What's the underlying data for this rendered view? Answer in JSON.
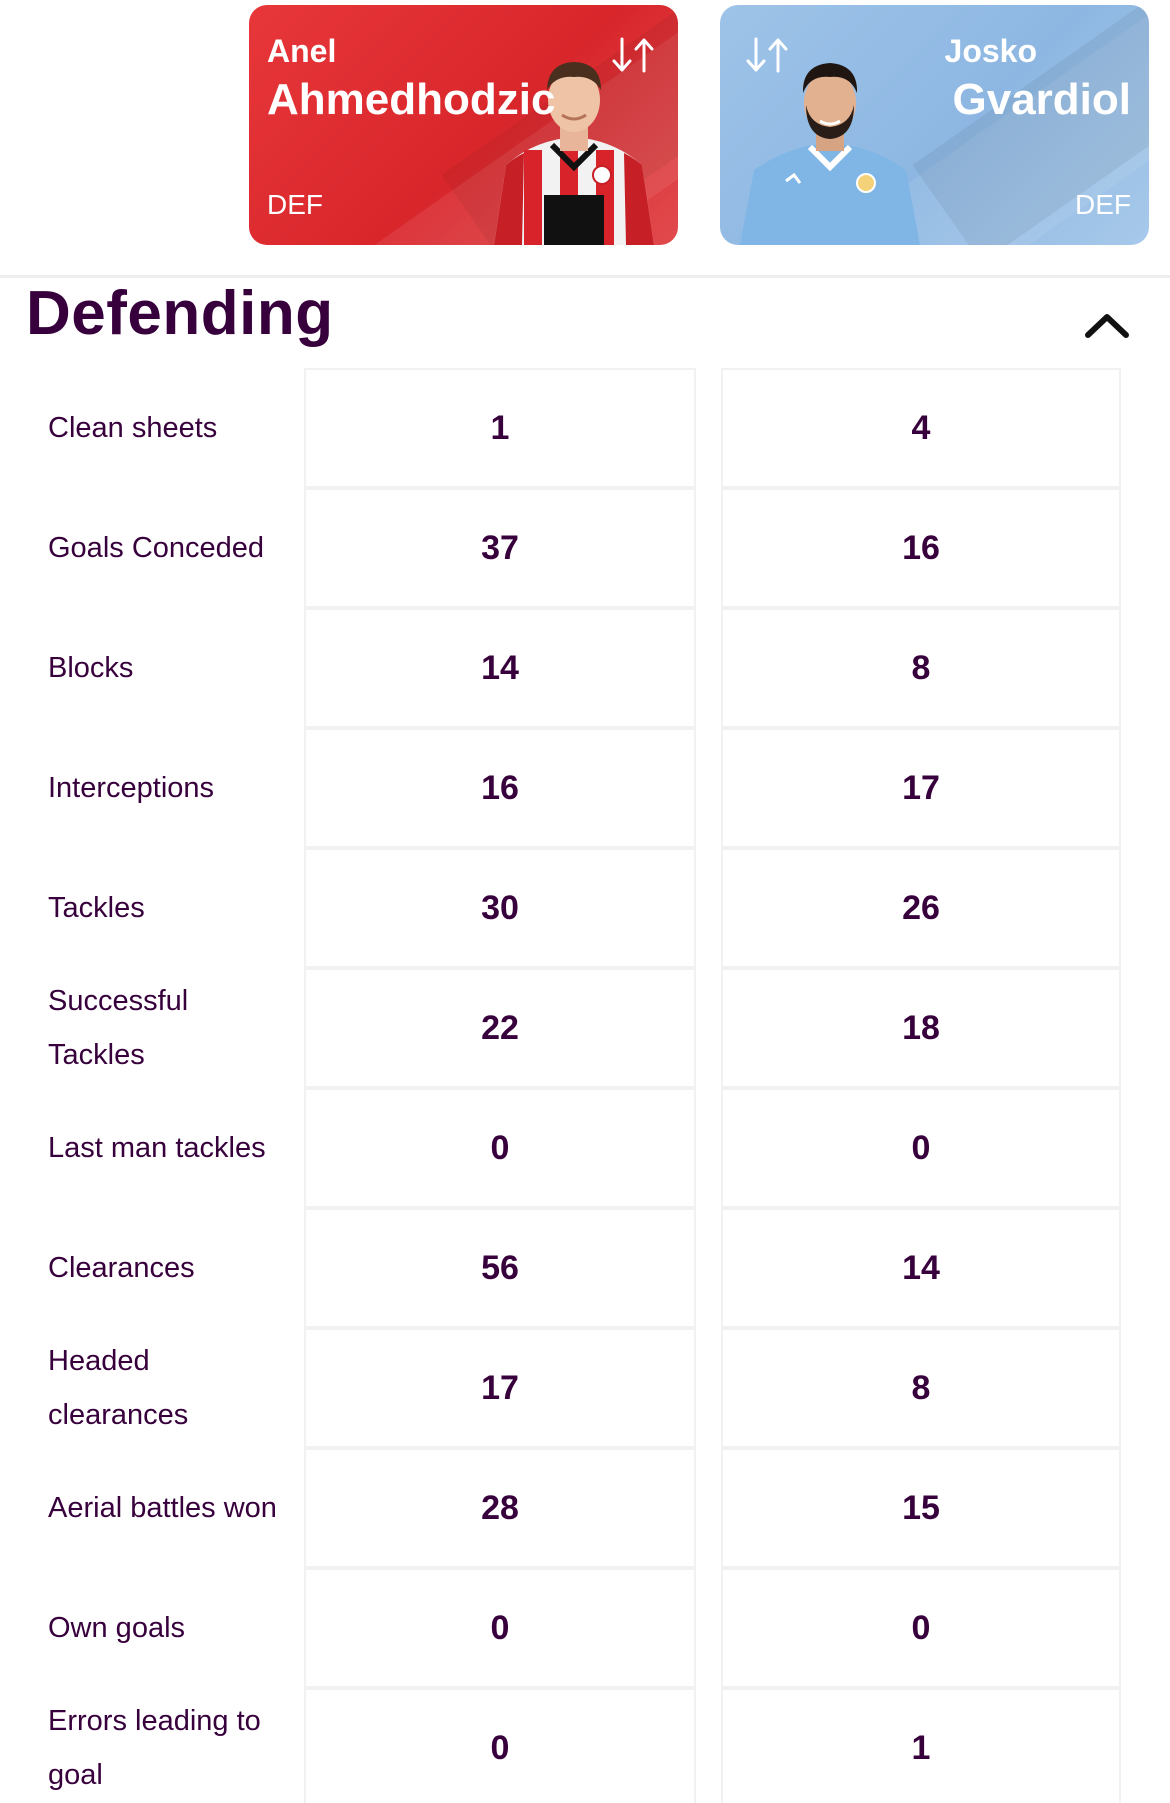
{
  "players": [
    {
      "first_name": "Anel",
      "last_name": "Ahmedhodzic",
      "position": "DEF",
      "card_color": "#e0363a"
    },
    {
      "first_name": "Josko",
      "last_name": "Gvardiol",
      "position": "DEF",
      "card_color": "#96bde6"
    }
  ],
  "section": {
    "title": "Defending",
    "toggle_icon": "chevron-up-icon"
  },
  "stats": [
    {
      "label": "Clean sheets",
      "values": [
        "1",
        "4"
      ]
    },
    {
      "label": "Goals Conceded",
      "values": [
        "37",
        "16"
      ]
    },
    {
      "label": "Blocks",
      "values": [
        "14",
        "8"
      ]
    },
    {
      "label": "Interceptions",
      "values": [
        "16",
        "17"
      ]
    },
    {
      "label": "Tackles",
      "values": [
        "30",
        "26"
      ]
    },
    {
      "label": "Successful Tackles",
      "values": [
        "22",
        "18"
      ]
    },
    {
      "label": "Last man tackles",
      "values": [
        "0",
        "0"
      ]
    },
    {
      "label": "Clearances",
      "values": [
        "56",
        "14"
      ]
    },
    {
      "label": "Headed clearances",
      "values": [
        "17",
        "8"
      ]
    },
    {
      "label": "Aerial battles won",
      "values": [
        "28",
        "15"
      ]
    },
    {
      "label": "Own goals",
      "values": [
        "0",
        "0"
      ]
    },
    {
      "label": "Errors leading to goal",
      "values": [
        "0",
        "1"
      ]
    }
  ],
  "colors": {
    "text": "#37003c",
    "cell_border": "#f1f1f1"
  }
}
